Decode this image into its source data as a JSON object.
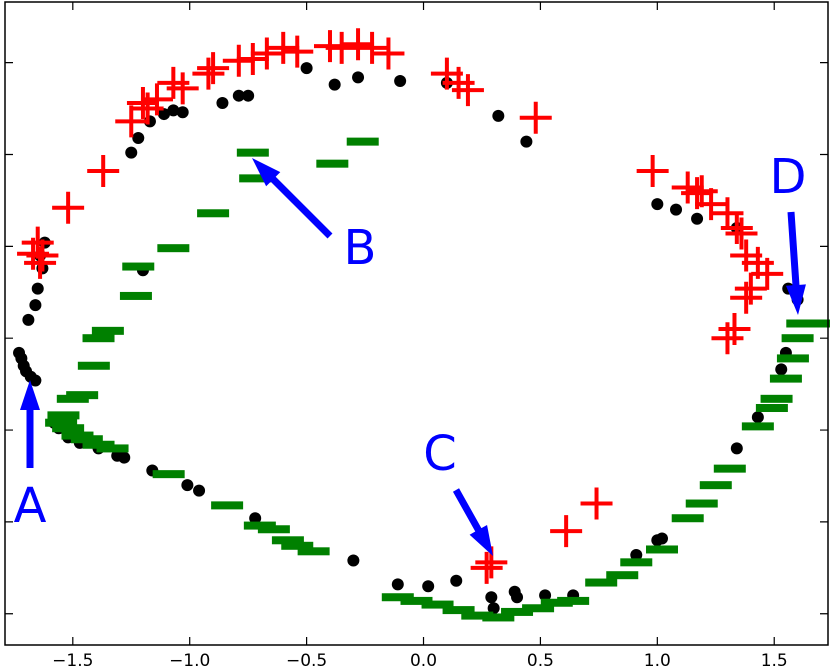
{
  "chart_data": {
    "type": "scatter",
    "xlim": [
      -1.79,
      1.73
    ],
    "ylim": [
      -1.67,
      1.83
    ],
    "xticks": [
      {
        "value": -1.5,
        "label": "−1.5"
      },
      {
        "value": -1.0,
        "label": "−1.0"
      },
      {
        "value": -0.5,
        "label": "−0.5"
      },
      {
        "value": 0,
        "label": "0.0"
      },
      0.5,
      {
        "value": 1.0,
        "label": "1.0"
      },
      1.5
    ],
    "yticks": [
      -1.5,
      -1.0,
      -0.5,
      0,
      0.5,
      1.0,
      1.5
    ],
    "annotations": [
      "A",
      "B",
      "C",
      "D"
    ],
    "series": [
      {
        "marker": "o",
        "color": "#000000",
        "x": [
          -1.73,
          -1.72,
          -1.71,
          -1.7,
          -1.68,
          -1.66,
          -1.69,
          -1.66,
          -1.65,
          -1.63,
          -1.64,
          -1.62,
          -1.58,
          -1.56,
          -1.52,
          -1.47,
          -1.39,
          -1.31,
          -1.28,
          -1.16,
          -1.01,
          -0.96,
          -0.72,
          -0.3,
          -0.11,
          0.02,
          0.14,
          0.29,
          0.3,
          0.39,
          0.4,
          0.52,
          0.64,
          0.91,
          1.0,
          1.02,
          1.34,
          1.43,
          1.53,
          1.55,
          1.6,
          1.56,
          1.34,
          1.17,
          1.08,
          1.0,
          0.44,
          0.32,
          0.1,
          -0.1,
          -0.28,
          -0.38,
          -0.5,
          -0.75,
          -0.79,
          -0.86,
          -1.03,
          -1.07,
          -1.11,
          -1.17,
          -1.22,
          -1.25,
          -1.2
        ],
        "values": [
          -0.08,
          -0.11,
          -0.15,
          -0.18,
          -0.21,
          -0.23,
          0.1,
          0.18,
          0.27,
          0.38,
          0.45,
          0.52,
          -0.46,
          -0.49,
          -0.54,
          -0.57,
          -0.6,
          -0.64,
          -0.65,
          -0.72,
          -0.8,
          -0.83,
          -0.98,
          -1.21,
          -1.34,
          -1.35,
          -1.32,
          -1.41,
          -1.47,
          -1.38,
          -1.41,
          -1.4,
          -1.4,
          -1.18,
          -1.1,
          -1.09,
          -0.6,
          -0.43,
          -0.17,
          -0.08,
          0.21,
          0.27,
          0.6,
          0.65,
          0.7,
          0.73,
          1.07,
          1.21,
          1.39,
          1.4,
          1.42,
          1.38,
          1.47,
          1.32,
          1.32,
          1.28,
          1.23,
          1.24,
          1.22,
          1.18,
          1.09,
          1.01,
          0.37
        ]
      },
      {
        "marker": "+",
        "color": "#ff0000",
        "x": [
          -1.65,
          -1.63,
          -1.67,
          -1.64,
          -1.52,
          -1.37,
          -1.25,
          -1.2,
          -1.18,
          -1.14,
          -1.07,
          -1.03,
          -0.92,
          -0.9,
          -0.79,
          -0.73,
          -0.67,
          -0.6,
          -0.54,
          -0.4,
          -0.35,
          -0.28,
          -0.22,
          -0.15,
          0.1,
          0.15,
          0.19,
          0.48,
          0.98,
          1.13,
          1.17,
          1.19,
          1.23,
          1.3,
          1.34,
          1.36,
          1.38,
          1.43,
          1.47,
          1.4,
          1.38,
          1.33,
          1.3,
          0.74,
          0.61,
          0.29,
          0.27
        ],
        "values": [
          0.52,
          0.45,
          0.46,
          0.41,
          0.71,
          0.91,
          1.18,
          1.28,
          1.25,
          1.3,
          1.39,
          1.36,
          1.44,
          1.47,
          1.51,
          1.52,
          1.55,
          1.58,
          1.56,
          1.59,
          1.58,
          1.6,
          1.58,
          1.55,
          1.44,
          1.39,
          1.35,
          1.2,
          0.91,
          0.82,
          0.79,
          0.8,
          0.73,
          0.68,
          0.6,
          0.57,
          0.45,
          0.41,
          0.35,
          0.27,
          0.22,
          0.05,
          0.0,
          -0.9,
          -1.05,
          -1.22,
          -1.25
        ]
      },
      {
        "marker": "_",
        "color": "#008000",
        "x": [
          -0.73,
          -0.26,
          -0.39,
          -0.72,
          -0.9,
          -1.07,
          -1.22,
          -1.23,
          -1.35,
          -1.39,
          -1.41,
          -1.46,
          -1.5,
          -1.54,
          -1.55,
          -1.52,
          -1.48,
          -1.44,
          -1.39,
          -1.33,
          -1.09,
          -0.84,
          -0.7,
          -0.64,
          -0.58,
          -0.54,
          -0.47,
          -0.11,
          -0.03,
          0.06,
          0.15,
          0.23,
          0.32,
          0.4,
          0.49,
          0.57,
          0.64,
          0.76,
          0.85,
          0.91,
          1.02,
          1.13,
          1.19,
          1.25,
          1.31,
          1.43,
          1.49,
          1.51,
          1.55,
          1.58,
          1.6,
          1.62,
          1.68
        ],
        "values": [
          1.01,
          1.07,
          0.95,
          0.87,
          0.68,
          0.49,
          0.39,
          0.23,
          0.04,
          0.0,
          -0.15,
          -0.31,
          -0.33,
          -0.42,
          -0.46,
          -0.49,
          -0.53,
          -0.55,
          -0.58,
          -0.6,
          -0.74,
          -0.91,
          -1.02,
          -1.04,
          -1.1,
          -1.13,
          -1.16,
          -1.41,
          -1.43,
          -1.45,
          -1.48,
          -1.51,
          -1.52,
          -1.49,
          -1.47,
          -1.44,
          -1.43,
          -1.33,
          -1.29,
          -1.22,
          -1.15,
          -0.98,
          -0.9,
          -0.8,
          -0.71,
          -0.48,
          -0.38,
          -0.33,
          -0.22,
          -0.11,
          0.0,
          0.08,
          0.08
        ]
      }
    ]
  }
}
